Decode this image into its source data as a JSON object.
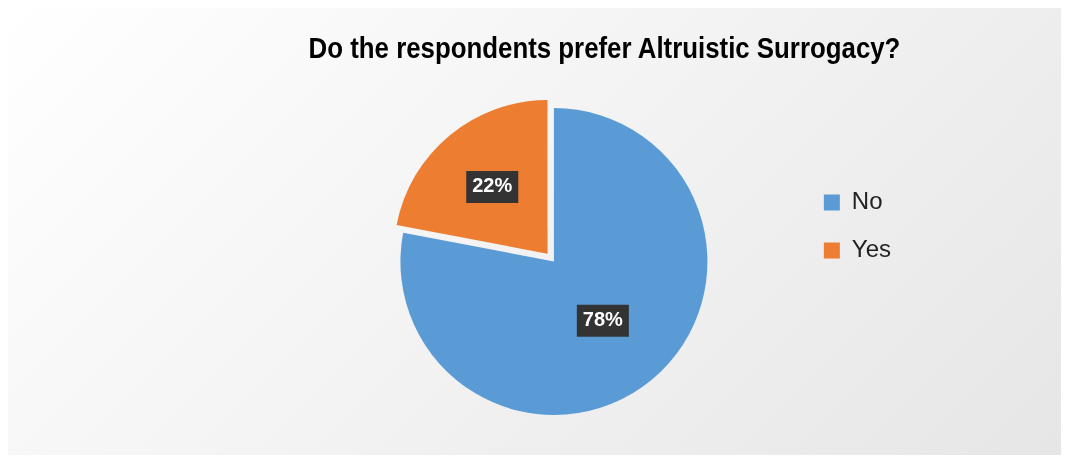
{
  "chart_data": {
    "type": "pie",
    "title": "Do the respondents prefer Altruistic Surrogacy?",
    "categories": [
      "No",
      "Yes"
    ],
    "values": [
      78,
      22
    ],
    "value_labels": [
      "78%",
      "22%"
    ],
    "colors": [
      "#5b9bd5",
      "#ed7d31"
    ],
    "legend": "right"
  }
}
